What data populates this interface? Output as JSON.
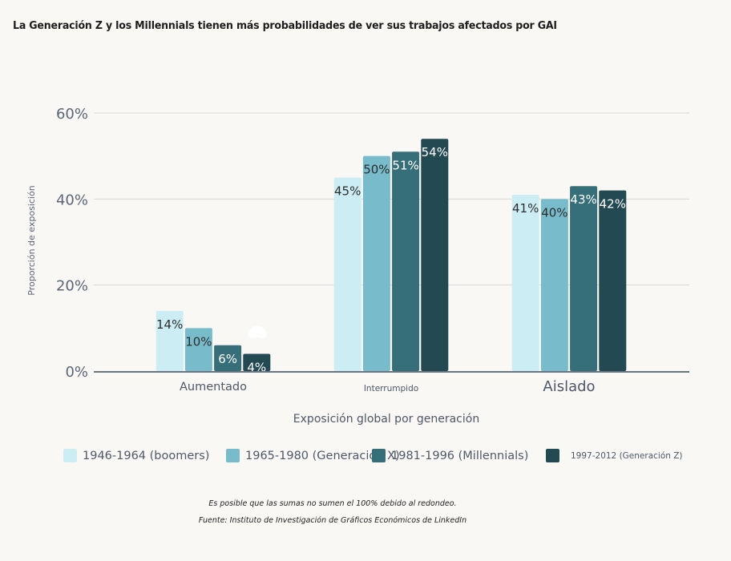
{
  "chart_data": {
    "type": "bar",
    "title": "La Generación Z y los Millennials tienen más probabilidades de ver sus trabajos afectados por GAI",
    "xlabel": "Exposición global por generación",
    "ylabel": "Proporción de exposición",
    "categories": [
      "Aumentado",
      "Interrumpido",
      "Aislado"
    ],
    "series": [
      {
        "name": "1946-1964 (boomers)",
        "color": "#cdedf4",
        "label_color": "#2d2d2d",
        "values": [
          14,
          45,
          41
        ]
      },
      {
        "name": "1965-1980 (Generación X)",
        "color": "#78bccb",
        "label_color": "#2d2d2d",
        "values": [
          10,
          50,
          40
        ]
      },
      {
        "name": "1981-1996 (Millennials)",
        "color": "#366e7a",
        "label_color": "#ffffff",
        "values": [
          6,
          51,
          43
        ]
      },
      {
        "name": "1997-2012 (Generación Z)",
        "color": "#234a52",
        "label_color": "#ffffff",
        "values": [
          4,
          54,
          42
        ]
      }
    ],
    "data_labels": [
      [
        "14%",
        "45%",
        "41%"
      ],
      [
        "10%",
        "50%",
        "40%"
      ],
      [
        "6%",
        "51%",
        "43%"
      ],
      [
        "4%",
        "54%",
        "42%"
      ]
    ],
    "yticks": [
      0,
      20,
      40,
      60
    ],
    "ytick_labels": [
      "0%",
      "20%",
      "40%",
      "60%"
    ],
    "ylim": [
      0,
      60
    ],
    "grid": true,
    "legend_position": "bottom"
  },
  "legend": [
    {
      "label": "1946‑1964 (boomers)",
      "color": "#cdedf4"
    },
    {
      "label": "1965‑1980 (Generación X)",
      "color": "#78bccb"
    },
    {
      "label": "1981‑1996 (Millennials)",
      "color": "#366e7a"
    },
    {
      "label": "1997‑2012 (Generación Z)",
      "color": "#234a52"
    }
  ],
  "footnotes": {
    "rounding": "Es posible que las sumas no sumen el 100% debido al redondeo.",
    "source": "Fuente: Instituto de Investigación de Gráficos Económicos de LinkedIn"
  }
}
